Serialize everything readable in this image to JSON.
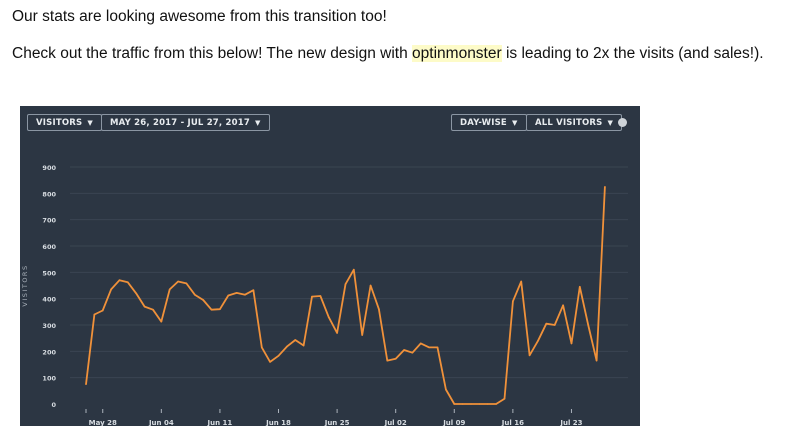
{
  "text": {
    "line1": "Our stats are looking awesome from this transition too!",
    "line2_pre": "Check out the traffic from this below! The new design with ",
    "line2_highlight": "optinmonster",
    "line2_post": " is leading to 2x the visits (and sales!)."
  },
  "toolbar": {
    "metric": "VISITORS",
    "date_range": "MAY 26, 2017 - JUL 27, 2017",
    "granularity": "DAY-WISE",
    "segment": "ALL VISITORS",
    "help_icon": "help-icon"
  },
  "colors": {
    "background": "#2c3643",
    "line": "#f0913a",
    "highlight": "#fdfbc8"
  },
  "chart_data": {
    "type": "line",
    "ylabel": "VISITORS",
    "ylim": [
      0,
      900
    ],
    "grid": true,
    "yticks": [
      "0",
      "100",
      "200",
      "300",
      "400",
      "500",
      "600",
      "700",
      "800",
      "900"
    ],
    "xticks": [
      "May 28",
      "Jun 04",
      "Jun 11",
      "Jun 18",
      "Jun 25",
      "Jul 02",
      "Jul 09",
      "Jul 16",
      "Jul 23"
    ],
    "x_start": "2017-05-26",
    "x_end": "2017-07-27",
    "values": [
      75,
      340,
      355,
      435,
      470,
      462,
      420,
      370,
      358,
      313,
      435,
      465,
      458,
      415,
      395,
      358,
      360,
      412,
      422,
      415,
      432,
      215,
      160,
      183,
      218,
      243,
      222,
      408,
      410,
      330,
      270,
      455,
      510,
      262,
      450,
      360,
      165,
      172,
      205,
      195,
      230,
      215,
      215,
      55,
      0,
      0,
      0,
      0,
      0,
      0,
      20,
      390,
      465,
      185,
      240,
      305,
      300,
      375,
      230,
      445,
      300,
      165,
      825
    ]
  }
}
